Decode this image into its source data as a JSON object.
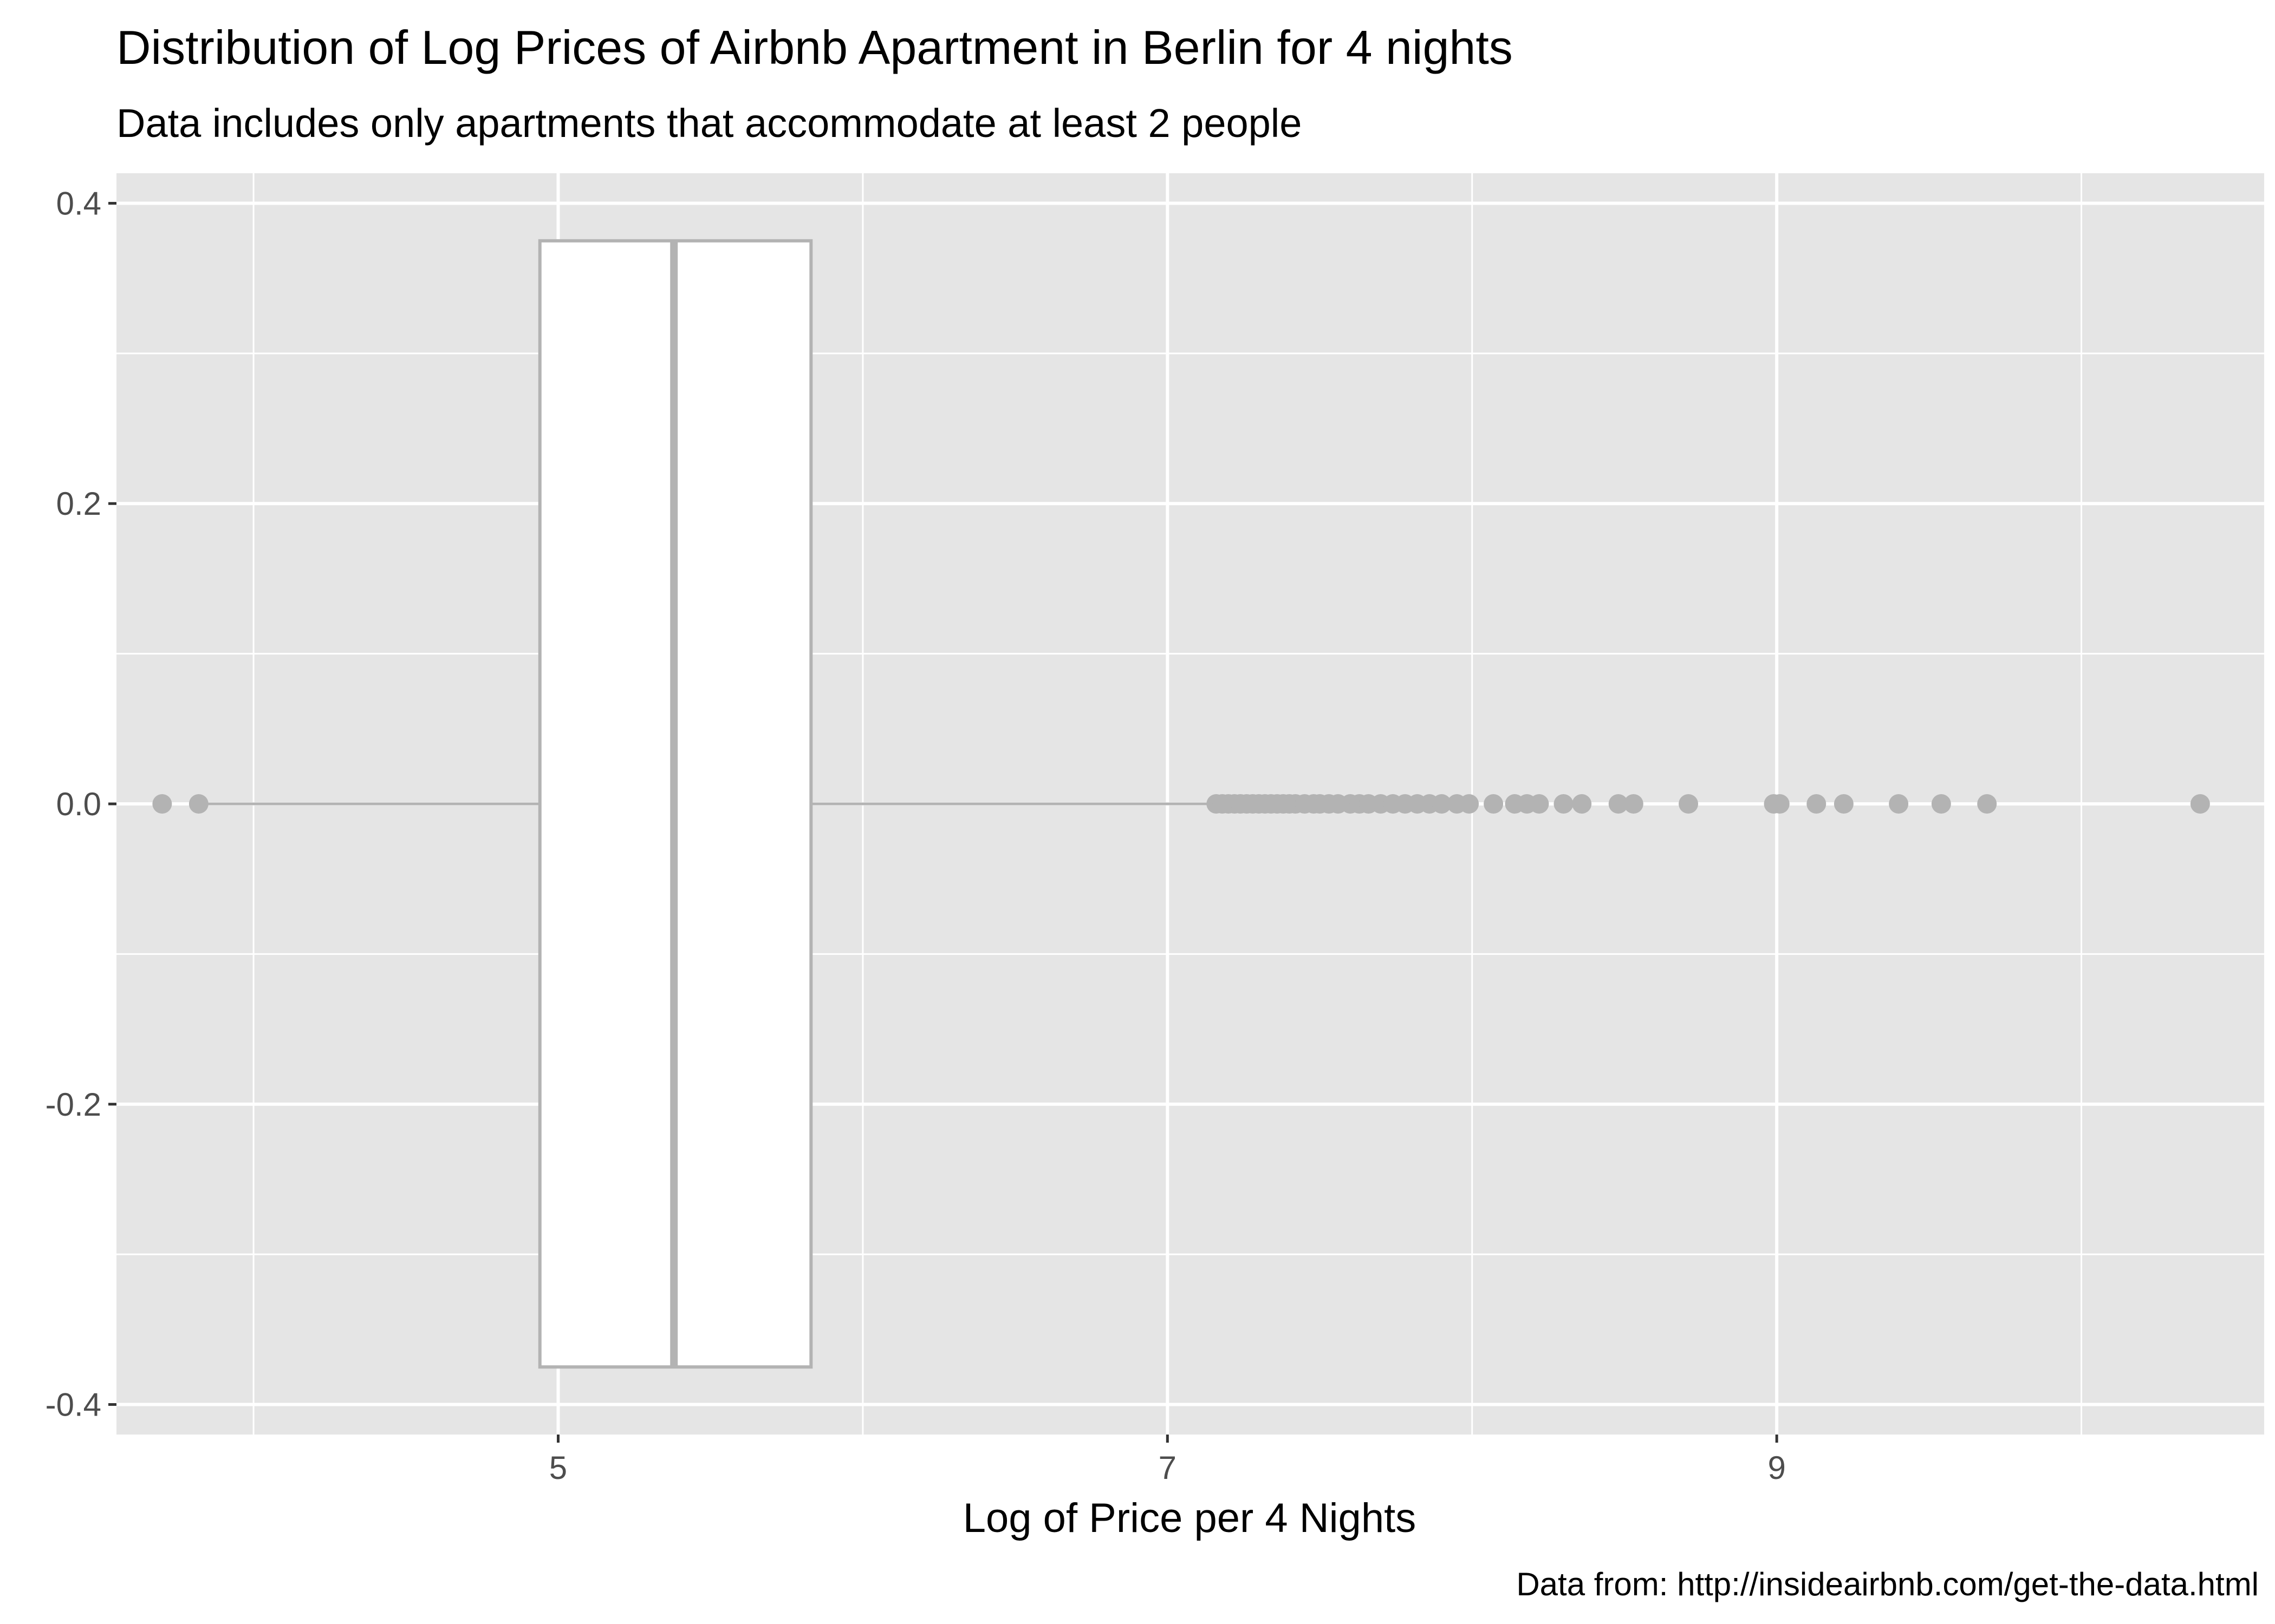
{
  "chart_data": {
    "type": "boxplot",
    "title": "Distribution of Log Prices of Airbnb Apartment in Berlin for 4 nights",
    "subtitle": "Data includes only apartments that accommodate at least 2 people",
    "xlabel": "Log of Price per 4 Nights",
    "ylabel": "",
    "caption": "Data from: http://insideairbnb.com/get-the-data.html",
    "xlim": [
      3.55,
      10.6
    ],
    "ylim": [
      -0.42,
      0.42
    ],
    "x_ticks": [
      5,
      7,
      9
    ],
    "x_tick_labels": [
      "5",
      "7",
      "9"
    ],
    "y_ticks": [
      -0.4,
      -0.2,
      0.0,
      0.2,
      0.4
    ],
    "y_tick_labels": [
      "-0.4",
      "-0.2",
      "0.0",
      "0.2",
      "0.4"
    ],
    "grid": true,
    "box": {
      "lower_whisker": 3.82,
      "q1": 4.94,
      "median": 5.38,
      "q3": 5.83,
      "upper_whisker": 7.14,
      "y_min": -0.375,
      "y_max": 0.375
    },
    "outliers": [
      3.7,
      3.82,
      7.16,
      7.18,
      7.2,
      7.22,
      7.24,
      7.26,
      7.28,
      7.3,
      7.32,
      7.34,
      7.36,
      7.38,
      7.4,
      7.42,
      7.45,
      7.48,
      7.5,
      7.53,
      7.56,
      7.6,
      7.63,
      7.66,
      7.7,
      7.74,
      7.78,
      7.82,
      7.86,
      7.9,
      7.95,
      7.99,
      8.07,
      8.14,
      8.18,
      8.22,
      8.3,
      8.36,
      8.48,
      8.53,
      8.71,
      8.99,
      9.01,
      9.13,
      9.22,
      9.4,
      9.54,
      9.69,
      10.39
    ],
    "colors": {
      "panel_background": "#e5e5e5",
      "grid_major": "#ffffff",
      "grid_minor": "#f2f2f2",
      "box_fill": "#ffffff",
      "box_outline": "#b3b3b3",
      "outlier": "#b3b3b3"
    }
  }
}
